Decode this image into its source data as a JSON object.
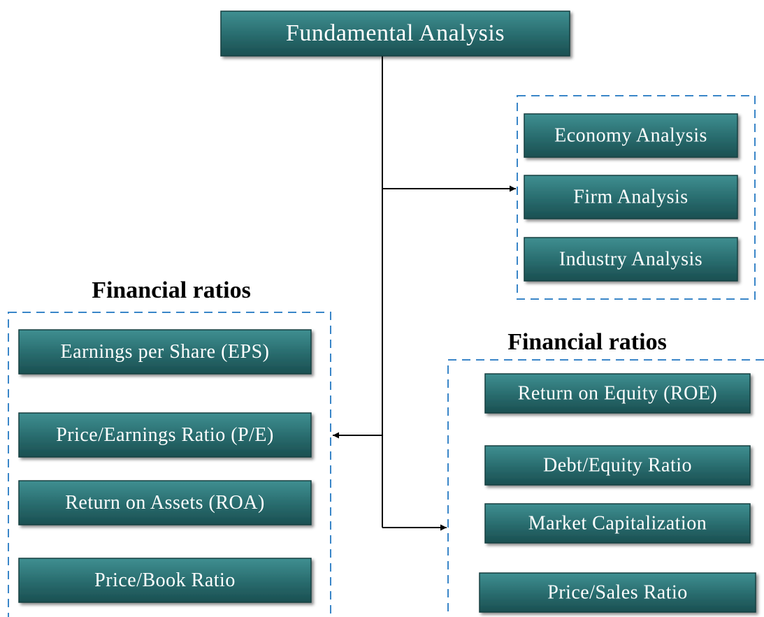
{
  "title": "Fundamental Analysis",
  "groups": [
    {
      "items": [
        "Economy Analysis",
        "Firm Analysis",
        "Industry Analysis"
      ]
    },
    {
      "title": "Financial ratios",
      "items": [
        "Earnings per Share (EPS)",
        "Price/Earnings Ratio (P/E)",
        "Return on Assets (ROA)",
        "Price/Book Ratio"
      ]
    },
    {
      "title": "Financial ratios",
      "items": [
        "Return on Equity (ROE)",
        "Debt/Equity Ratio",
        "Market Capitalization",
        "Price/Sales Ratio"
      ]
    }
  ]
}
